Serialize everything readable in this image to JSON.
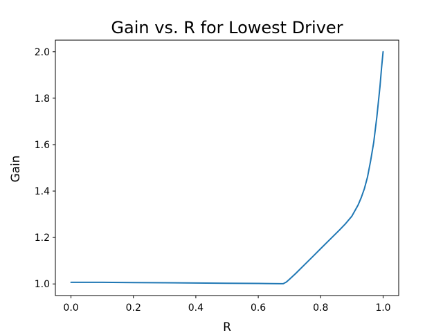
{
  "chart_data": {
    "type": "line",
    "title": "Gain vs. R for Lowest Driver",
    "xlabel": "R",
    "ylabel": "Gain",
    "xlim": [
      -0.05,
      1.05
    ],
    "ylim": [
      0.95,
      2.05
    ],
    "grid": false,
    "x_ticks": [
      0.0,
      0.2,
      0.4,
      0.6,
      0.8,
      1.0
    ],
    "x_tick_labels": [
      "0.0",
      "0.2",
      "0.4",
      "0.6",
      "0.8",
      "1.0"
    ],
    "y_ticks": [
      1.0,
      1.2,
      1.4,
      1.6,
      1.8,
      2.0
    ],
    "y_tick_labels": [
      "1.0",
      "1.2",
      "1.4",
      "1.6",
      "1.8",
      "2.0"
    ],
    "colors": {
      "line": "#1f77b4",
      "axes": "#000000"
    },
    "series": [
      {
        "x": [
          0.0,
          0.1,
          0.2,
          0.3,
          0.4,
          0.5,
          0.6,
          0.67,
          0.68,
          0.69,
          0.7,
          0.72,
          0.75,
          0.78,
          0.8,
          0.83,
          0.86,
          0.88,
          0.9,
          0.92,
          0.93,
          0.94,
          0.95,
          0.96,
          0.97,
          0.98,
          0.99,
          0.995,
          1.0
        ],
        "y": [
          1.007,
          1.007,
          1.006,
          1.005,
          1.004,
          1.003,
          1.002,
          1.001,
          1.001,
          1.008,
          1.02,
          1.045,
          1.085,
          1.125,
          1.152,
          1.192,
          1.232,
          1.26,
          1.292,
          1.34,
          1.372,
          1.41,
          1.46,
          1.53,
          1.61,
          1.72,
          1.85,
          1.93,
          2.0
        ]
      }
    ]
  }
}
